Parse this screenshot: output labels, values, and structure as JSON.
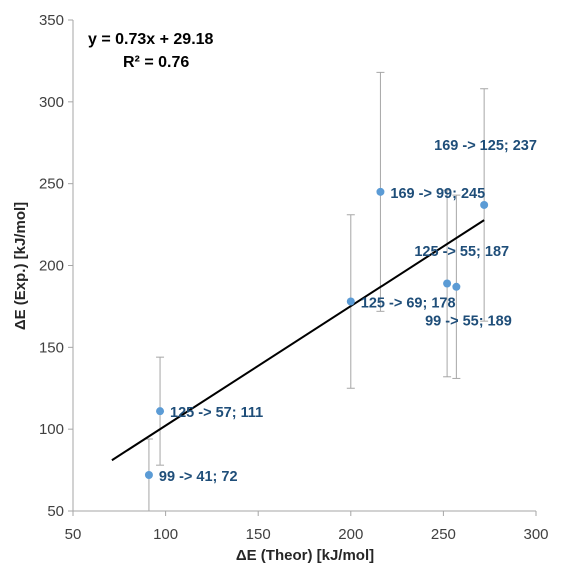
{
  "chart_data": {
    "type": "scatter",
    "xlabel": "ΔE (Theor) [kJ/mol]",
    "ylabel": "ΔE (Exp.) [kJ/mol]",
    "xlim": [
      50,
      300
    ],
    "ylim": [
      50,
      350
    ],
    "xticks": [
      "50",
      "100",
      "150",
      "200",
      "250",
      "300"
    ],
    "yticks": [
      "50",
      "100",
      "150",
      "200",
      "250",
      "300",
      "350"
    ],
    "grid": false,
    "point_color": "#5B9BD5",
    "label_color": "#1F4E79",
    "errorbar_color": "#A6A6A6",
    "trendline_color": "#000000",
    "trendline": {
      "slope": 0.73,
      "intercept": 29.18,
      "x_range": [
        71,
        272
      ],
      "equation": "y = 0.73x + 29.18",
      "r2_label": "R² = 0.76"
    },
    "points": [
      {
        "x": 91,
        "y": 72,
        "err": 22,
        "label": "99 -> 41; 72"
      },
      {
        "x": 97,
        "y": 111,
        "err": 33,
        "label": "125 -> 57; 111"
      },
      {
        "x": 200,
        "y": 178,
        "err": 53,
        "label": "125 -> 69; 178"
      },
      {
        "x": 216,
        "y": 245,
        "err": 73,
        "label": "169 -> 99; 245"
      },
      {
        "x": 252,
        "y": 189,
        "err": 57,
        "label": "99 -> 55; 189"
      },
      {
        "x": 257,
        "y": 187,
        "err": 56,
        "label": "125 -> 55; 187"
      },
      {
        "x": 272,
        "y": 237,
        "err": 71,
        "label": "169 -> 125; 237"
      }
    ]
  }
}
